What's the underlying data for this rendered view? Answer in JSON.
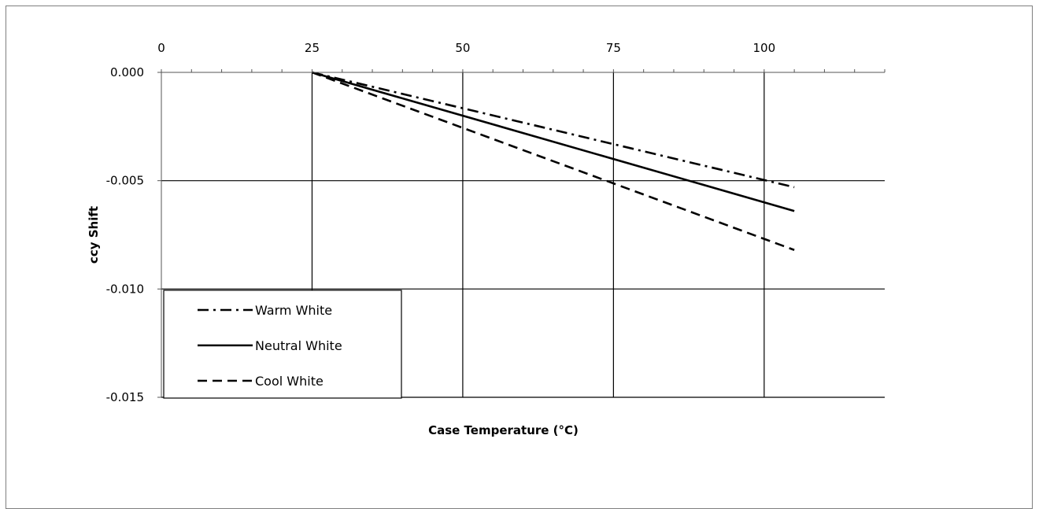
{
  "chart_data": {
    "type": "line",
    "xlabel": "Case Temperature (°C)",
    "ylabel": "ccy Shift",
    "xlim": [
      0,
      120
    ],
    "ylim": [
      -0.015,
      0.0
    ],
    "x_ticks": [
      "0",
      "25",
      "50",
      "75",
      "100"
    ],
    "x_tick_values": [
      0,
      25,
      50,
      75,
      100
    ],
    "y_ticks": [
      "0.000",
      "-0.005",
      "-0.010",
      "-0.015"
    ],
    "y_tick_values": [
      0.0,
      -0.005,
      -0.01,
      -0.015
    ],
    "x_axis_position": "top",
    "grid": true,
    "legend_position": "bottom-left",
    "series": [
      {
        "name": "Warm White",
        "style": "dash-dot",
        "x": [
          25,
          105
        ],
        "y": [
          0.0,
          -0.0053
        ]
      },
      {
        "name": "Neutral White",
        "style": "solid",
        "x": [
          25,
          105
        ],
        "y": [
          0.0,
          -0.0064
        ]
      },
      {
        "name": "Cool White",
        "style": "dashed",
        "x": [
          25,
          105
        ],
        "y": [
          0.0,
          -0.0082
        ]
      }
    ]
  }
}
